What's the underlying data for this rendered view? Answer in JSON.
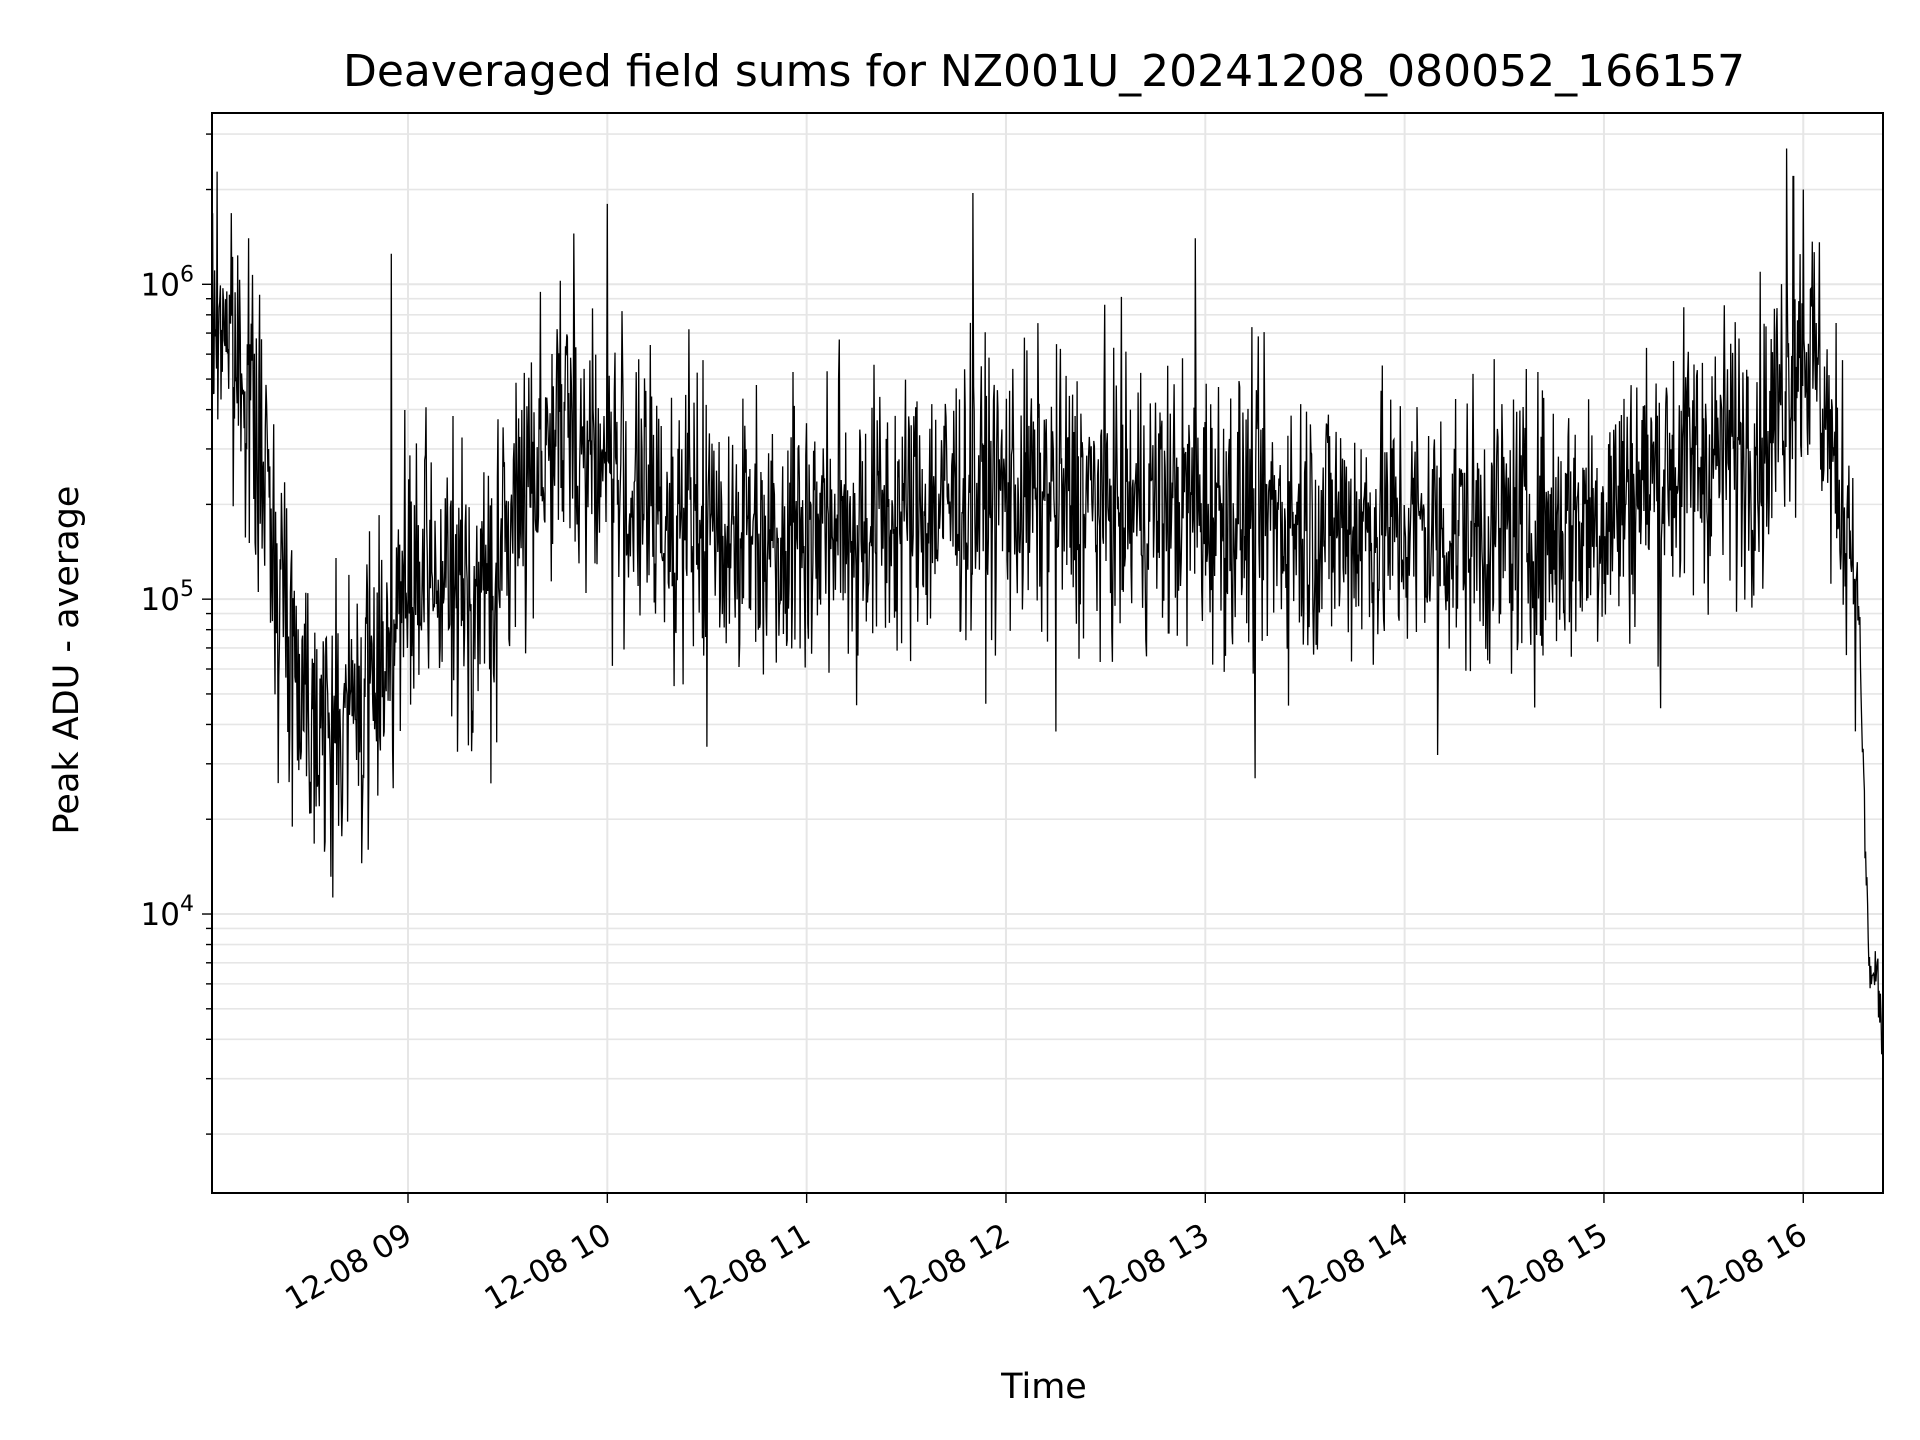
{
  "chart_data": {
    "type": "line",
    "title": "Deaveraged field sums for NZ001U_20241208_080052_166157",
    "xlabel": "Time",
    "ylabel": "Peak ADU - average",
    "yscale": "log",
    "ylim": [
      1300,
      3500000
    ],
    "xlim": [
      "2024-12-08 08:01",
      "2024-12-08 16:24"
    ],
    "grid": true,
    "line_color": "#000000",
    "grid_color": "#e6e6e6",
    "x_ticks": [
      {
        "value": "2024-12-08 09:00",
        "label": "12-08 09"
      },
      {
        "value": "2024-12-08 10:00",
        "label": "12-08 10"
      },
      {
        "value": "2024-12-08 11:00",
        "label": "12-08 11"
      },
      {
        "value": "2024-12-08 12:00",
        "label": "12-08 12"
      },
      {
        "value": "2024-12-08 13:00",
        "label": "12-08 13"
      },
      {
        "value": "2024-12-08 14:00",
        "label": "12-08 14"
      },
      {
        "value": "2024-12-08 15:00",
        "label": "12-08 15"
      },
      {
        "value": "2024-12-08 16:00",
        "label": "12-08 16"
      }
    ],
    "y_ticks": [
      {
        "value": 10000,
        "base": "10",
        "exp": "4"
      },
      {
        "value": 100000,
        "base": "10",
        "exp": "5"
      },
      {
        "value": 1000000,
        "base": "10",
        "exp": "6"
      }
    ],
    "series": [
      {
        "points": [
          [
            "2024-12-08 08:01",
            700000
          ],
          [
            "2024-12-08 08:05",
            850000
          ],
          [
            "2024-12-08 08:08",
            500000
          ],
          [
            "2024-12-08 08:10",
            650000
          ],
          [
            "2024-12-08 08:12",
            400000
          ],
          [
            "2024-12-08 08:15",
            300000
          ],
          [
            "2024-12-08 08:18",
            200000
          ],
          [
            "2024-12-08 08:21",
            120000
          ],
          [
            "2024-12-08 08:24",
            80000
          ],
          [
            "2024-12-08 08:27",
            60000
          ],
          [
            "2024-12-08 08:30",
            50000
          ],
          [
            "2024-12-08 08:33",
            45000
          ],
          [
            "2024-12-08 08:36",
            40000
          ],
          [
            "2024-12-08 08:39",
            38000
          ],
          [
            "2024-12-08 08:42",
            42000
          ],
          [
            "2024-12-08 08:45",
            48000
          ],
          [
            "2024-12-08 08:48",
            55000
          ],
          [
            "2024-12-08 08:51",
            62000
          ],
          [
            "2024-12-08 08:54",
            75000
          ],
          [
            "2024-12-08 08:57",
            90000
          ],
          [
            "2024-12-08 09:00",
            100000
          ],
          [
            "2024-12-08 09:05",
            110000
          ],
          [
            "2024-12-08 09:10",
            115000
          ],
          [
            "2024-12-08 09:15",
            105000
          ],
          [
            "2024-12-08 09:20",
            100000
          ],
          [
            "2024-12-08 09:25",
            110000
          ],
          [
            "2024-12-08 09:30",
            150000
          ],
          [
            "2024-12-08 09:35",
            250000
          ],
          [
            "2024-12-08 09:40",
            300000
          ],
          [
            "2024-12-08 09:45",
            330000
          ],
          [
            "2024-12-08 09:50",
            340000
          ],
          [
            "2024-12-08 09:55",
            300000
          ],
          [
            "2024-12-08 10:00",
            260000
          ],
          [
            "2024-12-08 10:10",
            200000
          ],
          [
            "2024-12-08 10:20",
            180000
          ],
          [
            "2024-12-08 10:30",
            170000
          ],
          [
            "2024-12-08 10:45",
            165000
          ],
          [
            "2024-12-08 11:00",
            170000
          ],
          [
            "2024-12-08 11:15",
            175000
          ],
          [
            "2024-12-08 11:30",
            185000
          ],
          [
            "2024-12-08 11:45",
            210000
          ],
          [
            "2024-12-08 12:00",
            220000
          ],
          [
            "2024-12-08 12:15",
            210000
          ],
          [
            "2024-12-08 12:30",
            200000
          ],
          [
            "2024-12-08 12:45",
            200000
          ],
          [
            "2024-12-08 13:00",
            195000
          ],
          [
            "2024-12-08 13:15",
            185000
          ],
          [
            "2024-12-08 13:30",
            175000
          ],
          [
            "2024-12-08 13:45",
            170000
          ],
          [
            "2024-12-08 14:00",
            168000
          ],
          [
            "2024-12-08 14:15",
            165000
          ],
          [
            "2024-12-08 14:30",
            165000
          ],
          [
            "2024-12-08 14:45",
            168000
          ],
          [
            "2024-12-08 15:00",
            185000
          ],
          [
            "2024-12-08 15:10",
            230000
          ],
          [
            "2024-12-08 15:20",
            260000
          ],
          [
            "2024-12-08 15:30",
            280000
          ],
          [
            "2024-12-08 15:40",
            300000
          ],
          [
            "2024-12-08 15:50",
            330000
          ],
          [
            "2024-12-08 15:55",
            550000
          ],
          [
            "2024-12-08 16:00",
            650000
          ],
          [
            "2024-12-08 16:04",
            550000
          ],
          [
            "2024-12-08 16:07",
            380000
          ],
          [
            "2024-12-08 16:10",
            220000
          ],
          [
            "2024-12-08 16:13",
            200000
          ],
          [
            "2024-12-08 16:15",
            160000
          ],
          [
            "2024-12-08 16:17",
            80000
          ],
          [
            "2024-12-08 16:18",
            30000
          ],
          [
            "2024-12-08 16:19",
            12000
          ],
          [
            "2024-12-08 16:20",
            6500
          ],
          [
            "2024-12-08 16:21",
            6000
          ],
          [
            "2024-12-08 16:22",
            7000
          ],
          [
            "2024-12-08 16:23",
            5000
          ],
          [
            "2024-12-08 16:24",
            3700
          ]
        ]
      }
    ],
    "peaks": [
      [
        "2024-12-08 08:12",
        1400000
      ],
      [
        "2024-12-08 08:55",
        1250000
      ],
      [
        "2024-12-08 09:50",
        1450000
      ],
      [
        "2024-12-08 10:00",
        1800000
      ],
      [
        "2024-12-08 11:50",
        1950000
      ],
      [
        "2024-12-08 12:57",
        1400000
      ],
      [
        "2024-12-08 15:55",
        2700000
      ],
      [
        "2024-12-08 15:57",
        2200000
      ],
      [
        "2024-12-08 16:00",
        2000000
      ]
    ],
    "troughs": [
      [
        "2024-12-08 08:35",
        17000
      ],
      [
        "2024-12-08 08:48",
        16000
      ],
      [
        "2024-12-08 09:25",
        26000
      ],
      [
        "2024-12-08 10:30",
        34000
      ],
      [
        "2024-12-08 11:15",
        46000
      ],
      [
        "2024-12-08 12:15",
        38000
      ],
      [
        "2024-12-08 13:15",
        27000
      ],
      [
        "2024-12-08 14:10",
        32000
      ],
      [
        "2024-12-08 15:17",
        45000
      ]
    ]
  }
}
